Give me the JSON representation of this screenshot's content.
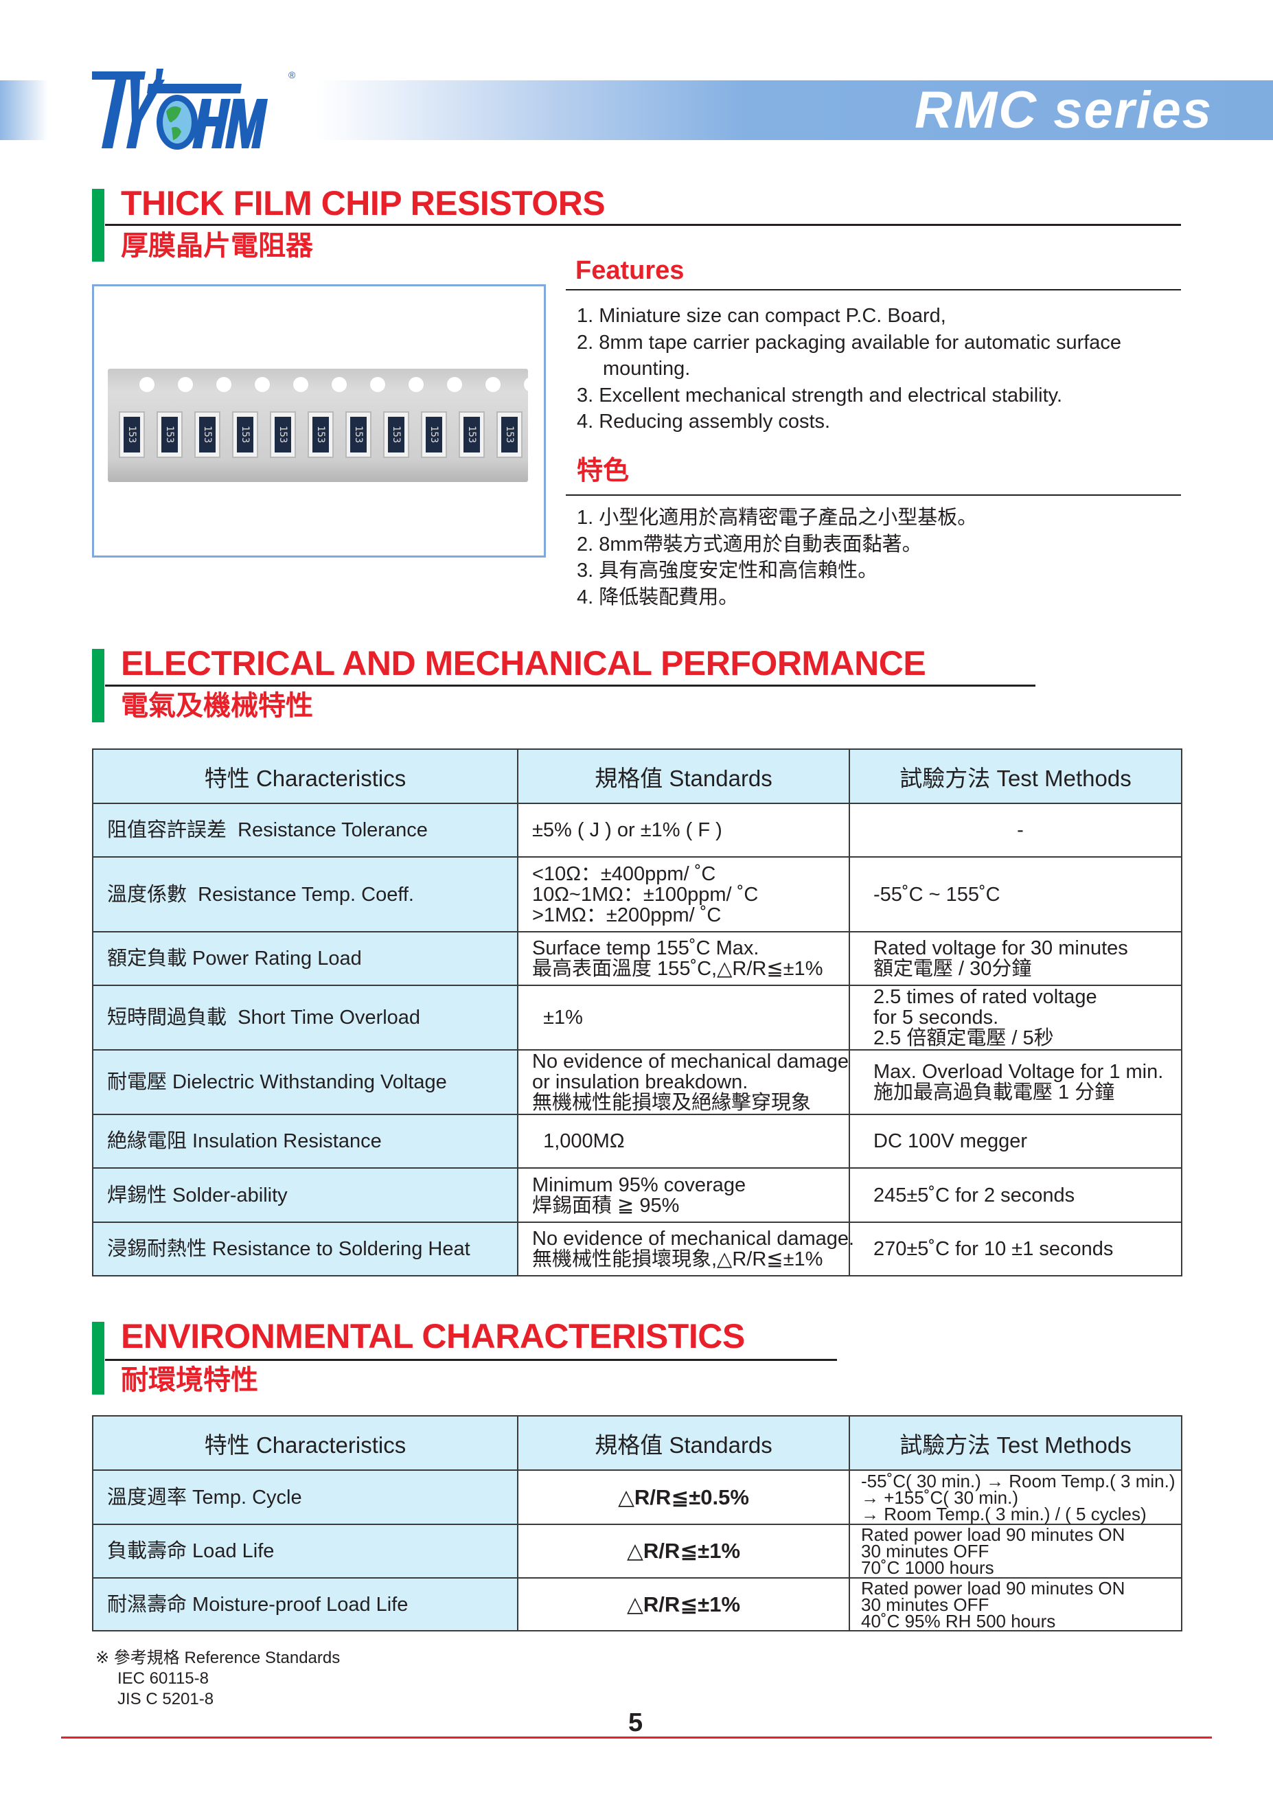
{
  "brand": {
    "logo_text": "TY-OHM",
    "registered": "®",
    "series": "RMC series",
    "colors": {
      "brand_blue": "#1c5fb8",
      "accent_red": "#e8202a",
      "accent_green": "#00a651",
      "table_header": "#d2effa"
    }
  },
  "section1": {
    "title": "THICK FILM CHIP RESISTORS",
    "title_cn": "厚膜晶片電阻器"
  },
  "photo": {
    "chip_marking": "153"
  },
  "features": {
    "title": "Features",
    "items": [
      "1. Miniature size can compact P.C. Board,",
      "2. 8mm tape carrier packaging available for automatic surface",
      "mounting.",
      "3. Excellent mechanical strength and electrical stability.",
      "4. Reducing assembly costs."
    ],
    "title_cn": "特色",
    "items_cn": [
      "1. 小型化適用於高精密電子產品之小型基板。",
      "2. 8mm帶裝方式適用於自動表面黏著。",
      "3. 具有高強度安定性和高信賴性。",
      "4. 降低裝配費用。"
    ]
  },
  "section2": {
    "title": "ELECTRICAL AND MECHANICAL PERFORMANCE",
    "title_cn": "電氣及機械特性"
  },
  "table1": {
    "headers": [
      "特性  Characteristics",
      "規格值  Standards",
      "試驗方法  Test Methods"
    ],
    "rows": [
      [
        [
          "阻值容許誤差  Resistance Tolerance"
        ],
        [
          "±5% ( J ) or ±1% ( F )"
        ],
        [
          "-"
        ]
      ],
      [
        [
          "溫度係數  Resistance Temp. Coeff."
        ],
        [
          "<10Ω：±400ppm/ ˚C",
          "10Ω~1MΩ：±100ppm/ ˚C",
          ">1MΩ：±200ppm/ ˚C"
        ],
        [
          "-55˚C ~ 155˚C"
        ]
      ],
      [
        [
          "額定負載 Power Rating Load"
        ],
        [
          "Surface temp 155˚C Max.",
          "最高表面溫度 155˚C,△R/R≦±1%"
        ],
        [
          "Rated voltage for 30 minutes",
          "額定電壓 / 30分鐘"
        ]
      ],
      [
        [
          "短時間過負載  Short Time Overload"
        ],
        [
          "  ±1%"
        ],
        [
          "2.5 times of rated voltage",
          "for 5 seconds.",
          "2.5 倍額定電壓 / 5秒"
        ]
      ],
      [
        [
          "耐電壓 Dielectric Withstanding Voltage"
        ],
        [
          "No evidence of mechanical damage",
          "or insulation breakdown.",
          "無機械性能損壞及絕緣擊穿現象"
        ],
        [
          "Max. Overload Voltage for 1 min.",
          "施加最高過負載電壓 1 分鐘"
        ]
      ],
      [
        [
          "絶緣電阻 Insulation Resistance"
        ],
        [
          "  1,000MΩ"
        ],
        [
          "DC 100V megger"
        ]
      ],
      [
        [
          "焊錫性 Solder-ability"
        ],
        [
          "Minimum 95% coverage",
          "焊錫面積 ≧ 95%"
        ],
        [
          "245±5˚C for 2 seconds"
        ]
      ],
      [
        [
          "浸錫耐熱性 Resistance to Soldering Heat"
        ],
        [
          "No evidence of mechanical damage.",
          "無機械性能損壞現象,△R/R≦±1%"
        ],
        [
          "270±5˚C for 10 ±1 seconds"
        ]
      ]
    ]
  },
  "section3": {
    "title": "ENVIRONMENTAL CHARACTERISTICS",
    "title_cn": "耐環境特性"
  },
  "table2": {
    "headers": [
      "特性  Characteristics",
      "規格值  Standards",
      "試驗方法  Test Methods"
    ],
    "rows": [
      [
        [
          "溫度週率 Temp. Cycle"
        ],
        [
          "△R/R≦±0.5%"
        ],
        [
          "-55˚C( 30 min.) → Room Temp.( 3 min.)",
          "→ +155˚C( 30 min.)",
          "→ Room Temp.( 3 min.) / ( 5 cycles)"
        ]
      ],
      [
        [
          "負載壽命 Load Life"
        ],
        [
          "△R/R≦±1%"
        ],
        [
          "Rated power load 90 minutes ON",
          "30 minutes OFF",
          "70˚C 1000 hours"
        ]
      ],
      [
        [
          "耐濕壽命 Moisture-proof Load Life"
        ],
        [
          "△R/R≦±1%"
        ],
        [
          "Rated power load 90 minutes ON",
          "30 minutes OFF",
          "40˚C 95% RH 500 hours"
        ]
      ]
    ]
  },
  "reference": {
    "title": "※ 參考規格 Reference Standards",
    "items": [
      "IEC 60115-8",
      "JIS C 5201-8"
    ]
  },
  "page_number": "5"
}
